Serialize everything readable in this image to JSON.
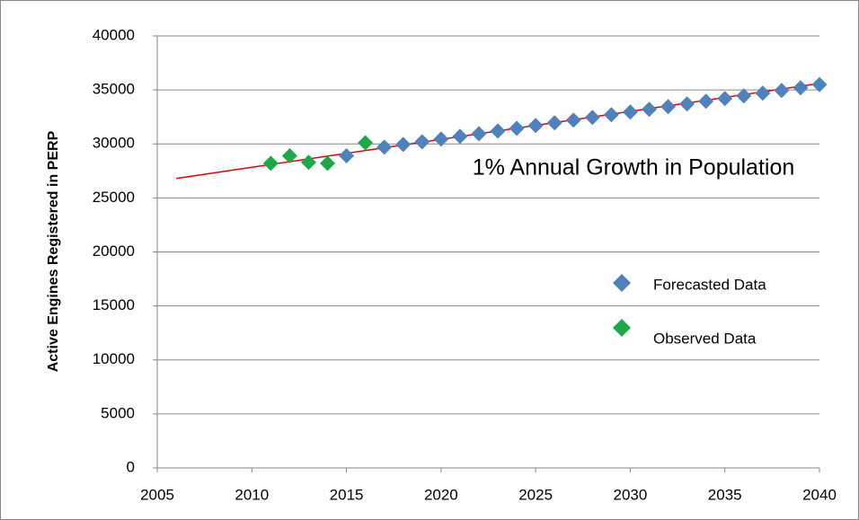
{
  "chart_data": {
    "type": "scatter",
    "ylabel": "Active Engines Registered in PERP",
    "annotation": "1% Annual Growth in Population",
    "xlim": [
      2005,
      2040
    ],
    "xticks": [
      2005,
      2010,
      2015,
      2020,
      2025,
      2030,
      2035,
      2040
    ],
    "ylim": [
      0,
      40000
    ],
    "yticks": [
      0,
      5000,
      10000,
      15000,
      20000,
      25000,
      30000,
      35000,
      40000
    ],
    "grid": true,
    "legend": "right",
    "series": [
      {
        "name": "Forecasted Data",
        "color": "#4f81bd",
        "x": [
          2015,
          2017,
          2018,
          2019,
          2020,
          2021,
          2022,
          2023,
          2024,
          2025,
          2026,
          2027,
          2028,
          2029,
          2030,
          2031,
          2032,
          2033,
          2034,
          2035,
          2036,
          2037,
          2038,
          2039,
          2040
        ],
        "values": [
          28900,
          29700,
          29950,
          30200,
          30450,
          30700,
          30950,
          31200,
          31450,
          31700,
          31950,
          32200,
          32450,
          32700,
          32950,
          33200,
          33450,
          33700,
          33950,
          34200,
          34450,
          34700,
          34950,
          35200,
          35500
        ]
      },
      {
        "name": "Observed Data",
        "color": "#1fa84a",
        "x": [
          2011,
          2012,
          2013,
          2014,
          2016
        ],
        "values": [
          28200,
          28900,
          28300,
          28200,
          30100
        ]
      }
    ],
    "trendline": {
      "color": "#e00000",
      "x": [
        2006,
        2040
      ],
      "values": [
        26800,
        35600
      ]
    }
  }
}
